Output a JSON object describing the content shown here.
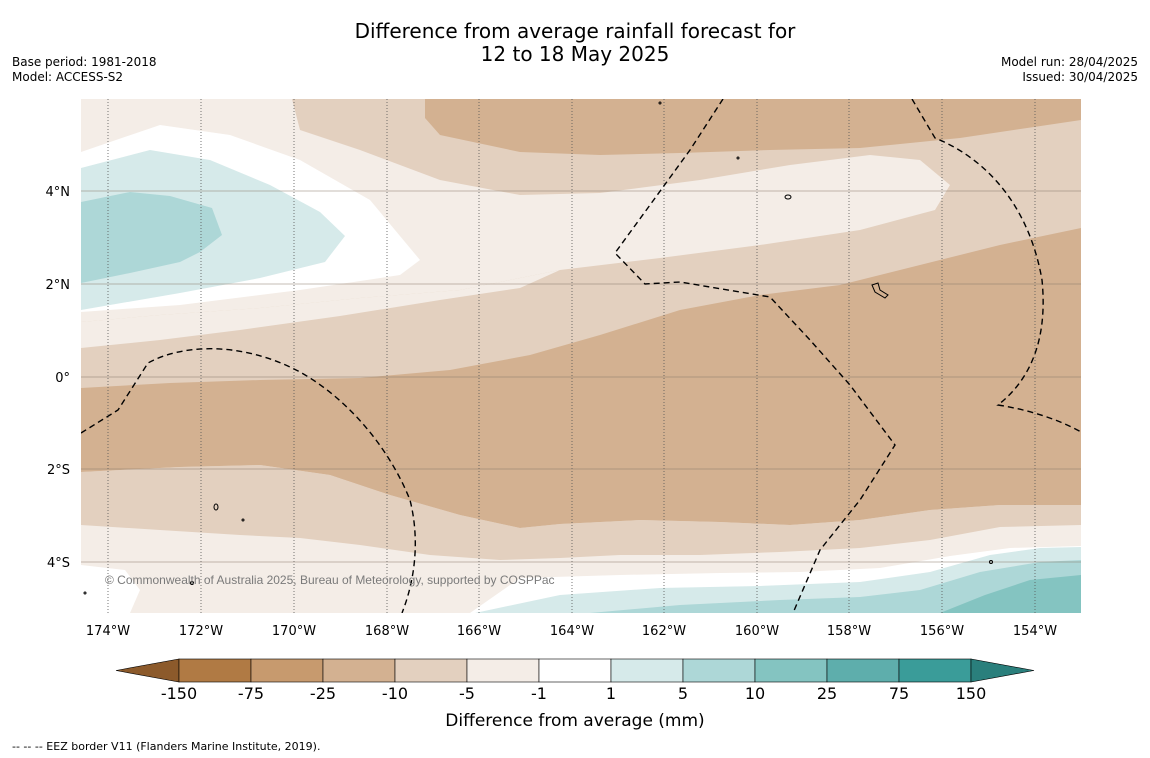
{
  "title": {
    "line1": "Difference from average rainfall forecast for",
    "line2": "12 to 18 May 2025"
  },
  "meta_left": {
    "base_period": "Base period: 1981-2018",
    "model": "Model: ACCESS-S2"
  },
  "meta_right": {
    "model_run": "Model run: 28/04/2025",
    "issued": "Issued: 30/04/2025"
  },
  "map": {
    "copyright": "© Commonwealth of Australia 2025, Bureau of Meteorology, supported by COSPPac",
    "lat_labels": [
      "4°N",
      "2°N",
      "0°",
      "2°S",
      "4°S"
    ],
    "lon_labels": [
      "174°W",
      "172°W",
      "170°W",
      "168°W",
      "166°W",
      "164°W",
      "162°W",
      "160°W",
      "158°W",
      "156°W",
      "154°W"
    ]
  },
  "colorbar": {
    "ticks": [
      "-150",
      "-75",
      "-25",
      "-10",
      "-5",
      "-1",
      "1",
      "5",
      "10",
      "25",
      "75",
      "150"
    ],
    "label": "Difference from average (mm)",
    "colors": [
      "#8c5a2b",
      "#b07a44",
      "#c79a6e",
      "#d3b191",
      "#e3d0bf",
      "#f4ede7",
      "#ffffff",
      "#d6eaea",
      "#add7d7",
      "#84c4c1",
      "#5eaeac",
      "#3a9c99",
      "#2a7f7c"
    ]
  },
  "footnote": "-- -- -- EEZ border V11 (Flanders Marine Institute, 2019)."
}
